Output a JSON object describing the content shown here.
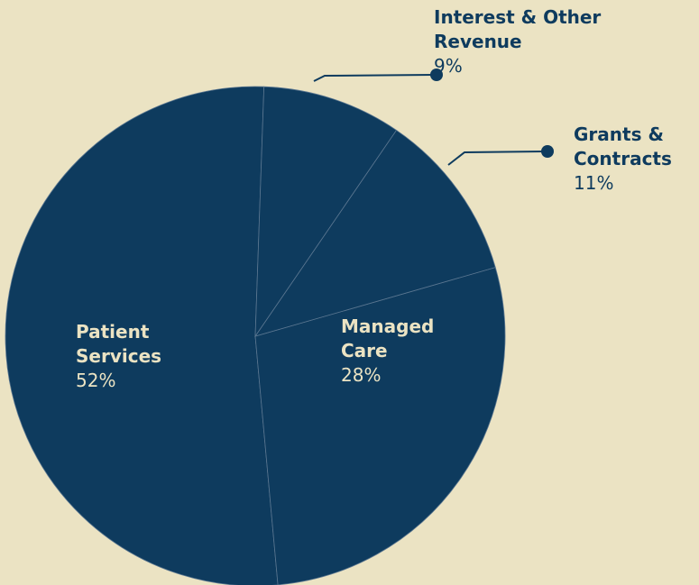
{
  "chart_data": {
    "type": "pie",
    "categories": [
      "Interest & Other Revenue",
      "Grants & Contracts",
      "Managed Care",
      "Patient Services"
    ],
    "values": [
      9,
      11,
      28,
      52
    ],
    "value_labels": [
      "9%",
      "11%",
      "28%",
      "52%"
    ],
    "colors": [
      "#0e3b5e",
      "#0e3b5e",
      "#0e3b5e",
      "#0e3b5e"
    ]
  }
}
